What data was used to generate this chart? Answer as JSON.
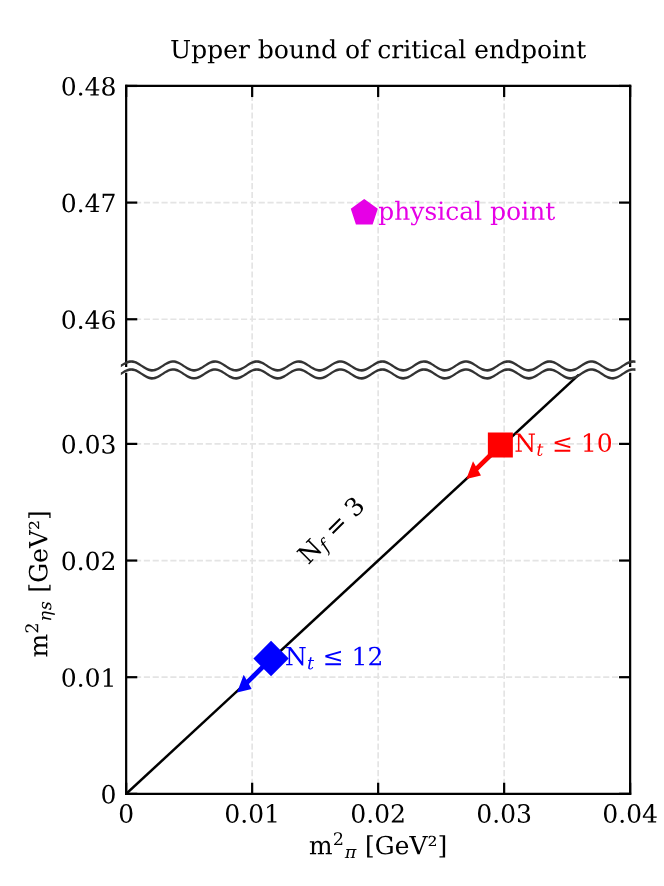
{
  "chart_data": [
    {
      "type": "scatter",
      "title": "Upper bound of critical endpoint",
      "xlim": [
        0,
        0.04
      ],
      "xticks": [
        0,
        0.01,
        0.02,
        0.03,
        0.04
      ],
      "ylim": [
        0.456,
        0.48
      ],
      "yticks": [
        0.46,
        0.47,
        0.48
      ],
      "tick_labels": "y",
      "grid": true,
      "legend": "right",
      "series": [
        {
          "name": "physical point",
          "color": "#e600e6",
          "x": [
            0.0189
          ],
          "values": [
            0.4691
          ]
        }
      ]
    },
    {
      "type": "scatter",
      "xlabel": "m$^{2}$$_{π}$ [GeV²]",
      "ylabel": "m$^{2}$$_{η}$$_{s}$ [GeV²]",
      "xlim": [
        0,
        0.04
      ],
      "xticks": [
        0,
        0.01,
        0.02,
        0.03,
        0.04
      ],
      "ylim": [
        0,
        0.036
      ],
      "yticks": [
        0,
        0.01,
        0.02,
        0.03
      ],
      "grid": true,
      "legend": "right",
      "annotations": [
        "N$_{f}$ = 3"
      ],
      "series": [
        {
          "type": "line",
          "color": "#000000",
          "x": [
            0,
            0.036
          ],
          "values": [
            0,
            0.036
          ]
        },
        {
          "name": "N$_{t}$ ≤ 10",
          "marker": "square",
          "color": "#ff0000",
          "x": [
            0.0297
          ],
          "values": [
            0.0299
          ]
        },
        {
          "name": "N$_{t}$ ≤ 12",
          "marker": "diamond",
          "color": "#0000ff",
          "x": [
            0.0115
          ],
          "values": [
            0.0116
          ]
        }
      ]
    }
  ]
}
